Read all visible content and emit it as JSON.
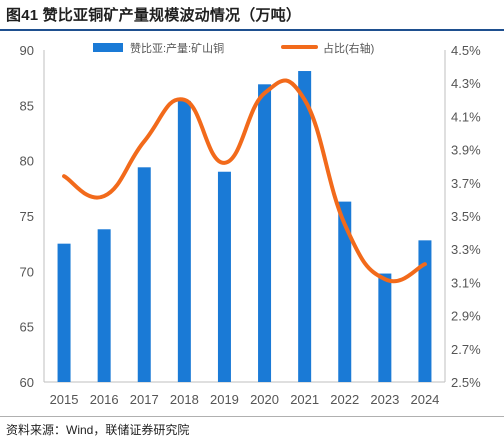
{
  "title": "图41 赞比亚铜矿产量规模波动情况（万吨）",
  "source": "资料来源：Wind，联储证券研究院",
  "chart_data": {
    "type": "bar",
    "categories": [
      "2015",
      "2016",
      "2017",
      "2018",
      "2019",
      "2020",
      "2021",
      "2022",
      "2023",
      "2024"
    ],
    "series": [
      {
        "name": "赞比亚:产量:矿山铜",
        "type": "bar",
        "axis": "left",
        "color": "#1a7ad6",
        "values": [
          72.5,
          73.8,
          79.4,
          85.4,
          79.0,
          86.9,
          88.1,
          76.3,
          69.8,
          72.8
        ]
      },
      {
        "name": "占比(右轴)",
        "type": "line",
        "axis": "right",
        "color": "#f26a1b",
        "values": [
          3.74,
          3.62,
          3.95,
          4.2,
          3.82,
          4.24,
          4.2,
          3.45,
          3.12,
          3.21
        ]
      }
    ],
    "y_left": {
      "min": 60,
      "max": 90,
      "step": 5,
      "ticks": [
        "60",
        "65",
        "70",
        "75",
        "80",
        "85",
        "90"
      ]
    },
    "y_right": {
      "min": 2.5,
      "max": 4.5,
      "step": 0.2,
      "ticks": [
        "2.5%",
        "2.7%",
        "2.9%",
        "3.1%",
        "3.3%",
        "3.5%",
        "3.7%",
        "3.9%",
        "4.1%",
        "4.3%",
        "4.5%"
      ]
    },
    "grid": false,
    "legend_position": "top"
  }
}
